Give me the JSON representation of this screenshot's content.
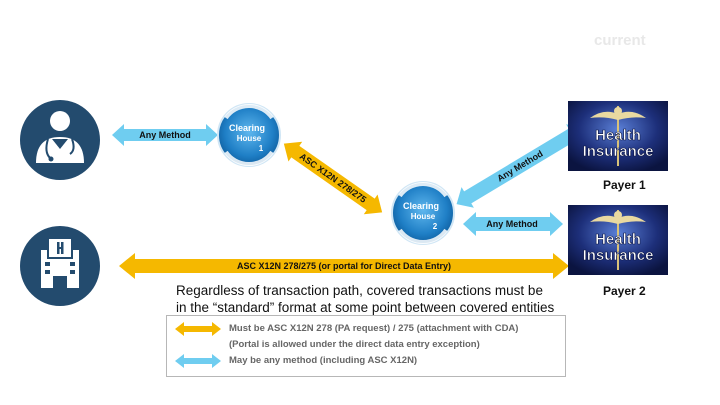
{
  "header": {
    "version_label": "current"
  },
  "nodes": {
    "provider_icon": "doctor-icon",
    "hospital_icon": "hospital-icon",
    "clearing_house_1": {
      "line1": "Clearing",
      "line2": "House",
      "number": "1"
    },
    "clearing_house_2": {
      "line1": "Clearing",
      "line2": "House",
      "number": "2"
    },
    "payer_1": {
      "label": "Payer 1",
      "logo_text": [
        "Health",
        "Insurance"
      ]
    },
    "payer_2": {
      "label": "Payer 2",
      "logo_text": [
        "Health",
        "Insurance"
      ]
    }
  },
  "arrows": {
    "provider_to_ch1": "Any Method",
    "ch1_to_ch2": "ASC X12N 278/275",
    "ch2_to_payer1": "Any Method",
    "ch2_to_payer2": "Any Method",
    "hospital_to_payer2": "ASC X12N 278/275  (or portal for Direct Data Entry)"
  },
  "caption": "Regardless of transaction path, covered transactions must be in the “standard” format at some point between covered entities",
  "legend": {
    "gold_line1": "Must be ASC X12N 278 (PA request) / 275 (attachment with CDA)",
    "gold_line2": "(Portal is allowed under the direct  data entry exception)",
    "blue_line": "May be any method (including ASC X12N)"
  },
  "colors": {
    "gold": "#F5B800",
    "blue": "#6FCDF0",
    "navy": "#234B6E",
    "ch_blue": "#1E7FC4"
  }
}
